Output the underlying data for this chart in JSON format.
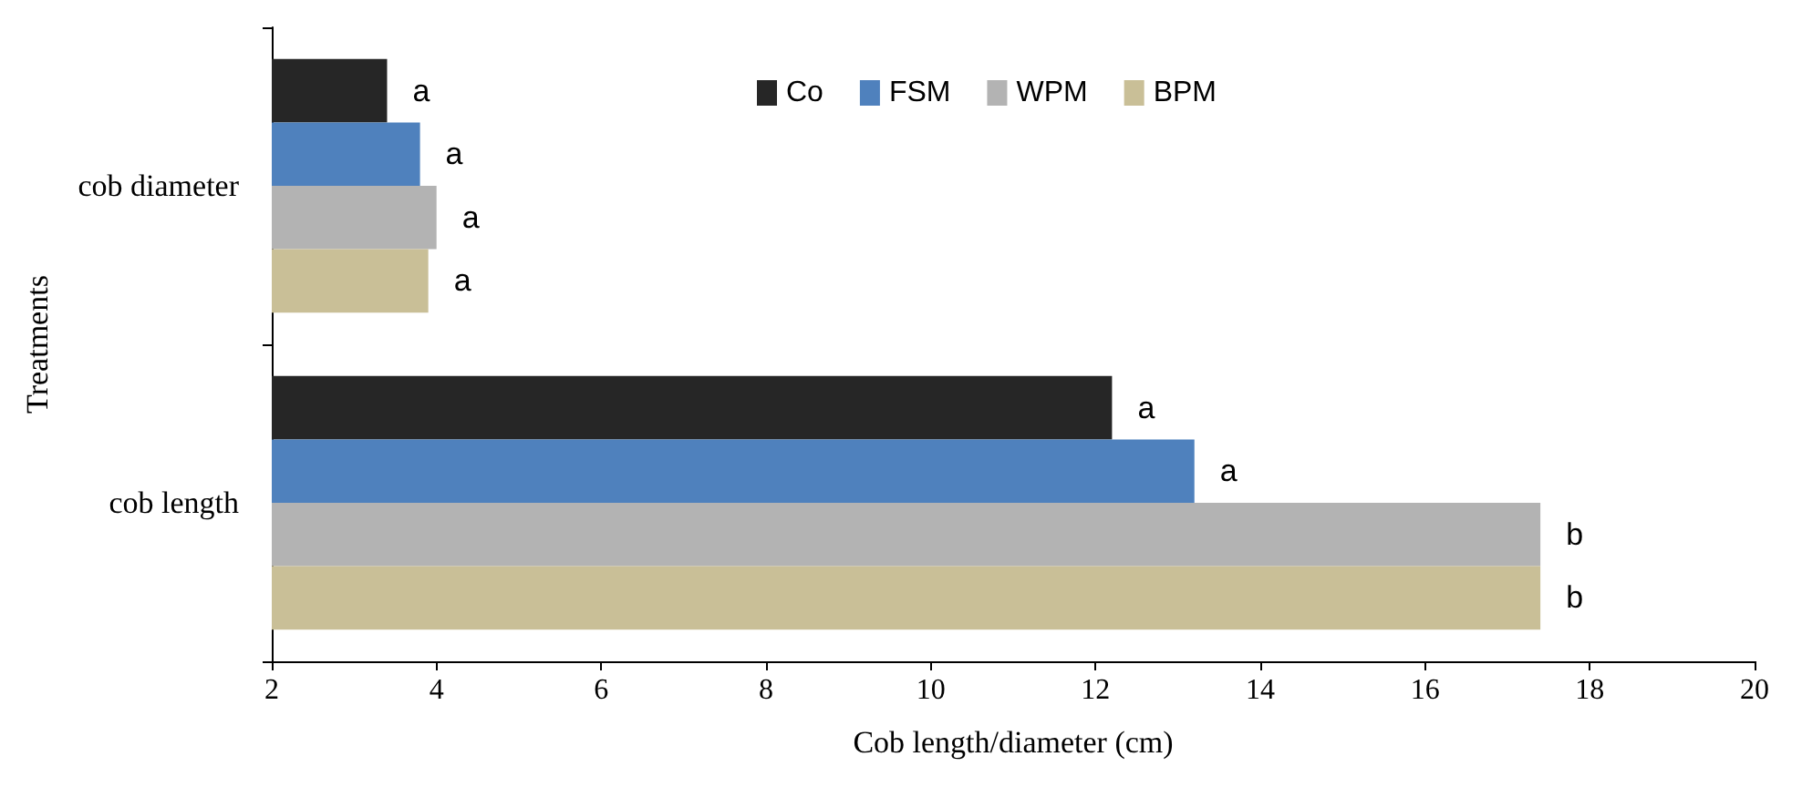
{
  "chart_data": {
    "type": "bar",
    "orientation": "horizontal",
    "xlabel": "Cob length/diameter (cm)",
    "ylabel": "Treatments",
    "categories": [
      "cob diameter",
      "cob length"
    ],
    "series": [
      {
        "name": "Co",
        "color": "#262626",
        "values": [
          3.4,
          12.2
        ],
        "value_labels": [
          "a",
          "a"
        ]
      },
      {
        "name": "FSM",
        "color": "#4f81bd",
        "values": [
          3.8,
          13.2
        ],
        "value_labels": [
          "a",
          "a"
        ]
      },
      {
        "name": "WPM",
        "color": "#b3b3b3",
        "values": [
          4.0,
          17.4
        ],
        "value_labels": [
          "a",
          "b"
        ]
      },
      {
        "name": "BPM",
        "color": "#c9bf97",
        "values": [
          3.9,
          17.4
        ],
        "value_labels": [
          "a",
          "b"
        ]
      }
    ],
    "xlim": [
      2,
      20
    ],
    "xticks": [
      2,
      4,
      6,
      8,
      10,
      12,
      14,
      16,
      18,
      20
    ],
    "grid": false,
    "legend": "top"
  }
}
